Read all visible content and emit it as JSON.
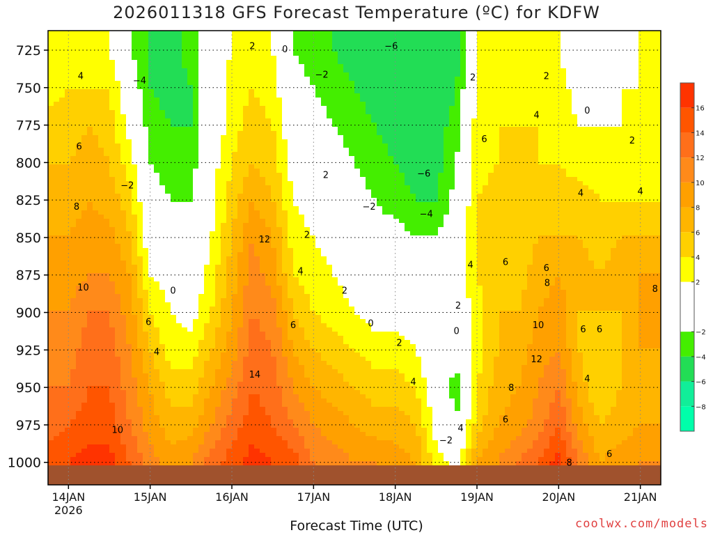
{
  "title": "2026011318 GFS Forecast Temperature (ºC) for KDFW",
  "credit": "coolwx.com/models",
  "chart_data": {
    "type": "heatmap",
    "title": "2026011318 GFS Forecast Temperature (ºC) for KDFW",
    "xlabel": "Forecast Time (UTC)",
    "ylabel": "",
    "x_range_days": [
      13.75,
      21.25
    ],
    "y_range_hpa": [
      1015,
      712
    ],
    "x_ticks": [
      {
        "day": 14,
        "label": "14JAN",
        "sublabel": "2026"
      },
      {
        "day": 15,
        "label": "15JAN",
        "sublabel": ""
      },
      {
        "day": 16,
        "label": "16JAN",
        "sublabel": ""
      },
      {
        "day": 17,
        "label": "17JAN",
        "sublabel": ""
      },
      {
        "day": 18,
        "label": "18JAN",
        "sublabel": ""
      },
      {
        "day": 19,
        "label": "19JAN",
        "sublabel": ""
      },
      {
        "day": 20,
        "label": "20JAN",
        "sublabel": ""
      },
      {
        "day": 21,
        "label": "21JAN",
        "sublabel": ""
      }
    ],
    "y_ticks": [
      "725",
      "750",
      "775",
      "800",
      "825",
      "850",
      "875",
      "900",
      "925",
      "950",
      "975",
      "1000"
    ],
    "colorbar": {
      "labels": [
        "16",
        "14",
        "12",
        "10",
        "8",
        "6",
        "4",
        "2",
        "−2",
        "−4",
        "−6",
        "−8"
      ],
      "bands": [
        {
          "from": 16,
          "to": 18,
          "color": "#ff3300"
        },
        {
          "from": 14,
          "to": 16,
          "color": "#ff5500"
        },
        {
          "from": 12,
          "to": 14,
          "color": "#ff6f1a"
        },
        {
          "from": 10,
          "to": 12,
          "color": "#ff8a1a"
        },
        {
          "from": 8,
          "to": 10,
          "color": "#ffa000"
        },
        {
          "from": 6,
          "to": 8,
          "color": "#ffb500"
        },
        {
          "from": 4,
          "to": 6,
          "color": "#ffd000"
        },
        {
          "from": 2,
          "to": 4,
          "color": "#ffff00"
        },
        {
          "from": -2,
          "to": 2,
          "color": "#ffffff"
        },
        {
          "from": -4,
          "to": -2,
          "color": "#44ee00"
        },
        {
          "from": -6,
          "to": -4,
          "color": "#22dd55"
        },
        {
          "from": -8,
          "to": -6,
          "color": "#11ee99"
        },
        {
          "from": -10,
          "to": -8,
          "color": "#00ffaa"
        }
      ]
    },
    "time_days": [
      13.75,
      14.0,
      14.25,
      14.5,
      14.75,
      15.0,
      15.25,
      15.5,
      15.75,
      16.0,
      16.25,
      16.5,
      16.75,
      17.0,
      17.25,
      17.5,
      17.75,
      18.0,
      18.25,
      18.5,
      18.75,
      19.0,
      19.25,
      19.5,
      19.75,
      20.0,
      20.25,
      20.5,
      20.75,
      21.0,
      21.25
    ],
    "levels_hpa": [
      1000,
      975,
      950,
      925,
      900,
      875,
      850,
      825,
      800,
      775,
      750,
      725
    ],
    "temperature_c": [
      [
        15,
        13,
        12,
        11,
        10,
        9,
        8,
        7,
        6,
        5,
        3,
        2
      ],
      [
        16,
        14,
        12,
        11,
        10,
        9,
        8,
        7,
        6,
        5,
        4,
        2
      ],
      [
        17,
        15,
        14,
        13,
        12,
        10,
        9,
        8,
        7,
        6,
        4,
        2
      ],
      [
        17,
        15,
        14,
        13,
        12,
        10,
        9,
        7,
        6,
        5,
        4,
        2
      ],
      [
        14,
        12,
        11,
        10,
        9,
        8,
        6,
        5,
        3,
        1,
        0,
        -2
      ],
      [
        11,
        9,
        8,
        6,
        4,
        2,
        0,
        -1,
        -2,
        -3,
        -4,
        -4
      ],
      [
        9,
        7,
        5,
        3,
        2,
        1,
        -1,
        -2,
        -3,
        -4,
        -5,
        -5
      ],
      [
        10,
        7,
        5,
        3,
        1,
        0,
        -1,
        -2,
        -3,
        -4,
        -4,
        -3
      ],
      [
        13,
        10,
        8,
        6,
        4,
        3,
        2,
        1,
        1,
        0,
        0,
        0
      ],
      [
        15,
        13,
        11,
        9,
        8,
        7,
        6,
        5,
        4,
        3,
        3,
        2
      ],
      [
        17,
        15,
        14,
        13,
        12,
        11,
        10,
        8,
        6,
        5,
        4,
        2
      ],
      [
        16,
        14,
        13,
        12,
        11,
        9,
        8,
        6,
        5,
        4,
        3,
        2
      ],
      [
        15,
        12,
        10,
        8,
        6,
        4,
        3,
        2,
        1,
        0,
        -1,
        -2
      ],
      [
        12,
        10,
        8,
        6,
        4,
        3,
        2,
        1,
        0,
        -1,
        -2,
        -3
      ],
      [
        11,
        9,
        7,
        5,
        3,
        2,
        1,
        0,
        -1,
        -2,
        -3,
        -4
      ],
      [
        10,
        8,
        6,
        4,
        2,
        1,
        0,
        -1,
        -2,
        -3,
        -4,
        -5
      ],
      [
        10,
        7,
        5,
        3,
        1,
        0,
        -1,
        -2,
        -3,
        -4,
        -5,
        -5
      ],
      [
        9,
        7,
        5,
        3,
        1,
        0,
        -1,
        -3,
        -4,
        -5,
        -6,
        -6
      ],
      [
        8,
        6,
        4,
        2,
        1,
        0,
        -2,
        -4,
        -5,
        -6,
        -6,
        -6
      ],
      [
        3,
        1,
        0,
        -1,
        -1,
        -1,
        -2,
        -4,
        -5,
        -5,
        -6,
        -6
      ],
      [
        1,
        -2,
        -3,
        -1,
        0,
        0,
        0,
        -1,
        -2,
        -3,
        -4,
        -5
      ],
      [
        8,
        5,
        4,
        3,
        3,
        4,
        4,
        4,
        3,
        3,
        2,
        2
      ],
      [
        10,
        8,
        7,
        6,
        6,
        6,
        5,
        5,
        4,
        4,
        3,
        2
      ],
      [
        12,
        9,
        8,
        7,
        6,
        5,
        5,
        5,
        4,
        4,
        3,
        2
      ],
      [
        14,
        11,
        10,
        9,
        8,
        7,
        6,
        5,
        4,
        4,
        3,
        2
      ],
      [
        17,
        14,
        12,
        10,
        9,
        8,
        6,
        5,
        4,
        3,
        3,
        2
      ],
      [
        12,
        9,
        7,
        6,
        6,
        7,
        6,
        5,
        3,
        2,
        1,
        0
      ],
      [
        8,
        6,
        4,
        5,
        6,
        6,
        5,
        4,
        3,
        2,
        1,
        0
      ],
      [
        9,
        7,
        6,
        6,
        6,
        7,
        6,
        4,
        3,
        2,
        2,
        1
      ],
      [
        10,
        8,
        7,
        8,
        8,
        8,
        6,
        4,
        3,
        2,
        2,
        2
      ],
      [
        10,
        8,
        7,
        8,
        8,
        8,
        6,
        4,
        3,
        2,
        2,
        2
      ]
    ],
    "contour_labels": [
      {
        "t": 14.15,
        "p": 742,
        "text": "4"
      },
      {
        "t": 14.13,
        "p": 789,
        "text": "6"
      },
      {
        "t": 14.1,
        "p": 829,
        "text": "8"
      },
      {
        "t": 14.18,
        "p": 883,
        "text": "10"
      },
      {
        "t": 14.6,
        "p": 978,
        "text": "10"
      },
      {
        "t": 14.72,
        "p": 815,
        "text": "−2"
      },
      {
        "t": 14.87,
        "p": 745,
        "text": "−4"
      },
      {
        "t": 14.98,
        "p": 906,
        "text": "6"
      },
      {
        "t": 15.08,
        "p": 926,
        "text": "4"
      },
      {
        "t": 15.28,
        "p": 885,
        "text": "0"
      },
      {
        "t": 16.25,
        "p": 722,
        "text": "2"
      },
      {
        "t": 16.4,
        "p": 851,
        "text": "12"
      },
      {
        "t": 16.28,
        "p": 941,
        "text": "14"
      },
      {
        "t": 16.65,
        "p": 724,
        "text": "0"
      },
      {
        "t": 16.75,
        "p": 908,
        "text": "6"
      },
      {
        "t": 16.84,
        "p": 872,
        "text": "4"
      },
      {
        "t": 16.92,
        "p": 848,
        "text": "2"
      },
      {
        "t": 17.1,
        "p": 741,
        "text": "−2"
      },
      {
        "t": 17.15,
        "p": 808,
        "text": "2"
      },
      {
        "t": 17.38,
        "p": 885,
        "text": "2"
      },
      {
        "t": 17.68,
        "p": 829,
        "text": "−2"
      },
      {
        "t": 17.7,
        "p": 907,
        "text": "0"
      },
      {
        "t": 17.95,
        "p": 722,
        "text": "−6"
      },
      {
        "t": 18.05,
        "p": 920,
        "text": "2"
      },
      {
        "t": 18.22,
        "p": 946,
        "text": "4"
      },
      {
        "t": 18.35,
        "p": 807,
        "text": "−6"
      },
      {
        "t": 18.38,
        "p": 834,
        "text": "−4"
      },
      {
        "t": 18.62,
        "p": 985,
        "text": "−2"
      },
      {
        "t": 18.75,
        "p": 912,
        "text": "0"
      },
      {
        "t": 18.77,
        "p": 895,
        "text": "2"
      },
      {
        "t": 18.8,
        "p": 977,
        "text": "4"
      },
      {
        "t": 18.92,
        "p": 868,
        "text": "4"
      },
      {
        "t": 18.95,
        "p": 743,
        "text": "2"
      },
      {
        "t": 19.09,
        "p": 784,
        "text": "6"
      },
      {
        "t": 19.35,
        "p": 866,
        "text": "6"
      },
      {
        "t": 19.35,
        "p": 971,
        "text": "6"
      },
      {
        "t": 19.42,
        "p": 950,
        "text": "8"
      },
      {
        "t": 19.85,
        "p": 742,
        "text": "2"
      },
      {
        "t": 19.73,
        "p": 768,
        "text": "4"
      },
      {
        "t": 19.85,
        "p": 870,
        "text": "6"
      },
      {
        "t": 19.86,
        "p": 880,
        "text": "8"
      },
      {
        "t": 19.75,
        "p": 908,
        "text": "10"
      },
      {
        "t": 19.73,
        "p": 931,
        "text": "12"
      },
      {
        "t": 20.13,
        "p": 1000,
        "text": "8"
      },
      {
        "t": 20.35,
        "p": 765,
        "text": "0"
      },
      {
        "t": 20.27,
        "p": 820,
        "text": "4"
      },
      {
        "t": 20.3,
        "p": 911,
        "text": "6"
      },
      {
        "t": 20.35,
        "p": 944,
        "text": "4"
      },
      {
        "t": 20.5,
        "p": 911,
        "text": "6"
      },
      {
        "t": 20.9,
        "p": 785,
        "text": "2"
      },
      {
        "t": 20.62,
        "p": 994,
        "text": "6"
      },
      {
        "t": 21.0,
        "p": 819,
        "text": "4"
      },
      {
        "t": 21.18,
        "p": 884,
        "text": "8"
      }
    ]
  }
}
